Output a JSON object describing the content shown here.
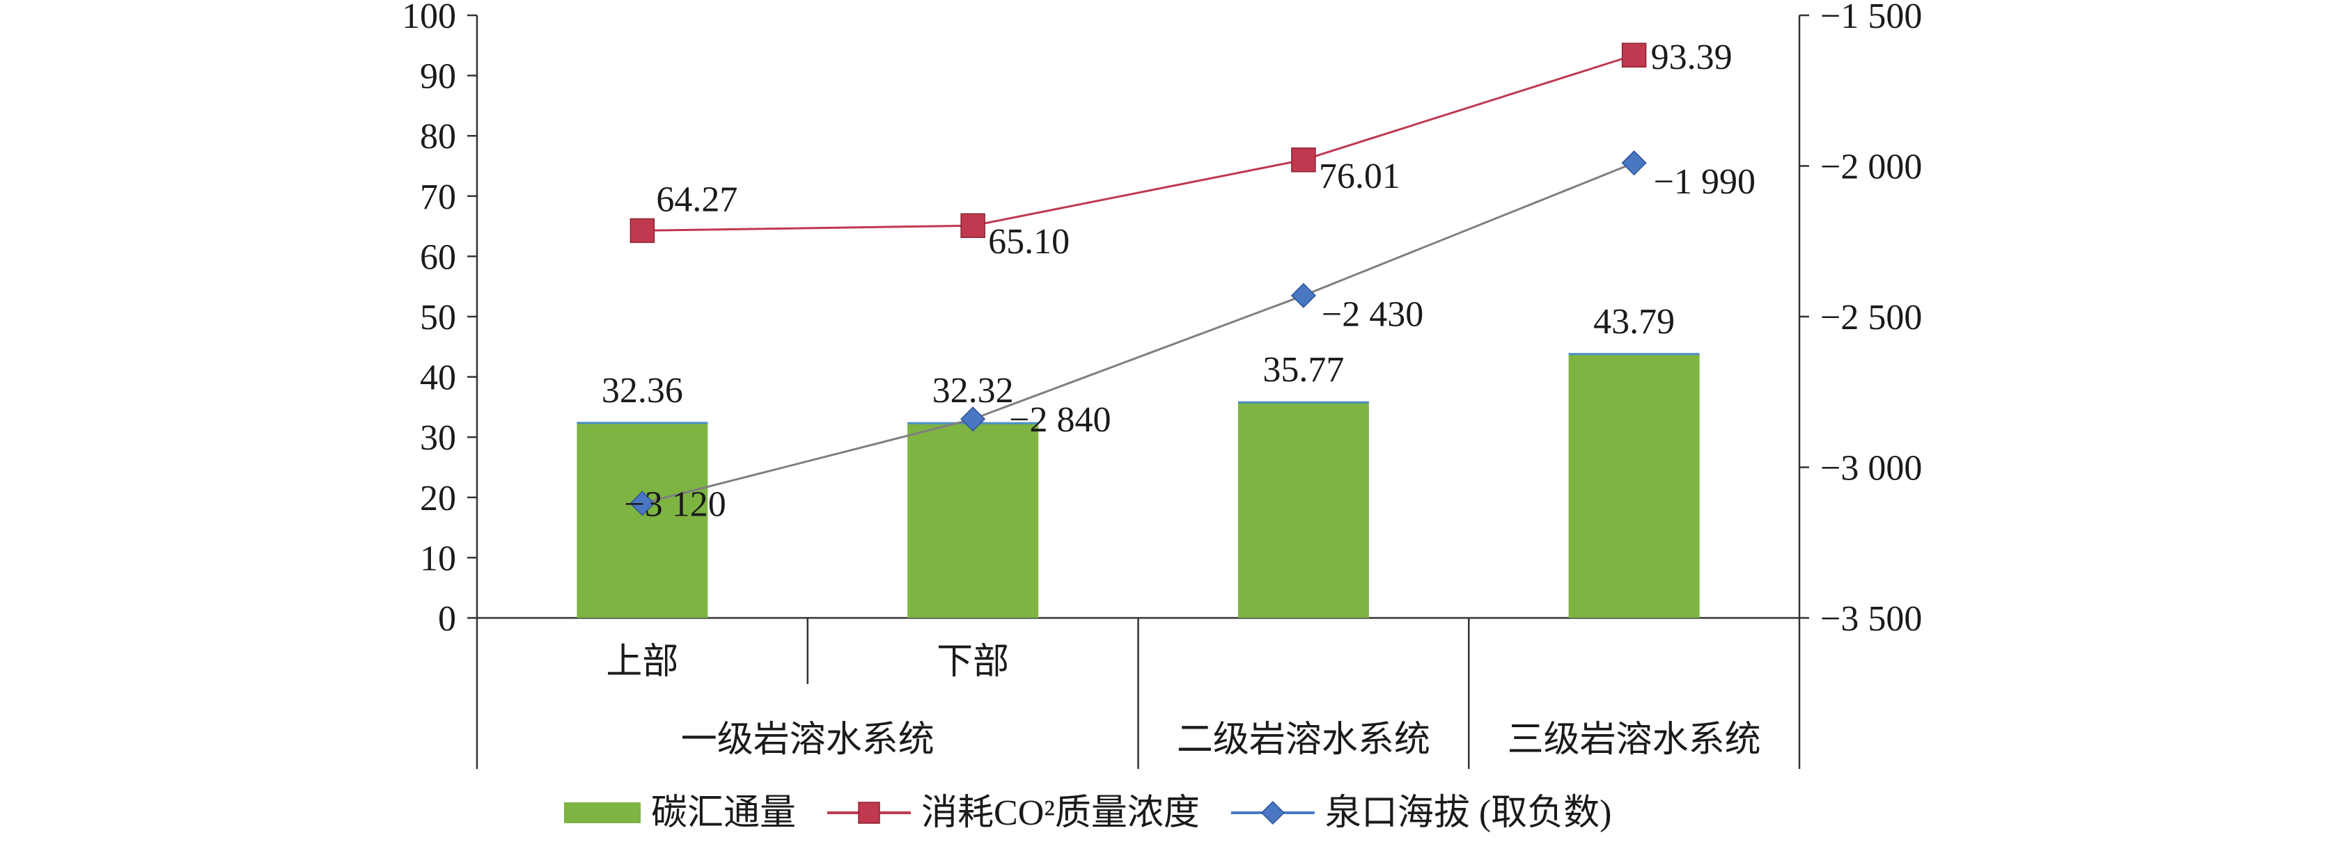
{
  "chart_data": {
    "type": "bar",
    "categories": [
      "上部",
      "下部",
      "二级岩溶水系统",
      "三级岩溶水系统"
    ],
    "category_groups": [
      {
        "label": "一级岩溶水系统",
        "members": [
          "上部",
          "下部"
        ]
      },
      {
        "label": "二级岩溶水系统",
        "members": [
          "二级岩溶水系统"
        ]
      },
      {
        "label": "三级岩溶水系统",
        "members": [
          "三级岩溶水系统"
        ]
      }
    ],
    "series": [
      {
        "name": "碳汇通量",
        "type": "bar",
        "axis": "left",
        "values": [
          32.36,
          32.32,
          35.77,
          43.79
        ],
        "labels": [
          "32.36",
          "32.32",
          "35.77",
          "43.79"
        ],
        "color": "#7db442"
      },
      {
        "name": "消耗CO²质量浓度",
        "type": "line",
        "axis": "left",
        "values": [
          64.27,
          65.1,
          76.01,
          93.39
        ],
        "labels": [
          "64.27",
          "65.10",
          "76.01",
          "93.39"
        ],
        "color": "#c0394f",
        "marker": "square"
      },
      {
        "name": "泉口海拔 (取负数)",
        "type": "line",
        "axis": "right",
        "values": [
          -3120,
          -2840,
          -2430,
          -1990
        ],
        "labels": [
          "−3 120",
          "−2 840",
          "−2 430",
          "−1 990"
        ],
        "color": "#4a77c4",
        "line_color": "#7f7f7f",
        "marker": "diamond"
      }
    ],
    "y_left": {
      "ylim": [
        0,
        100
      ],
      "ticks": [
        0,
        10,
        20,
        30,
        40,
        50,
        60,
        70,
        80,
        90,
        100
      ],
      "tick_labels": [
        "0",
        "10",
        "20",
        "30",
        "40",
        "50",
        "60",
        "70",
        "80",
        "90",
        "100"
      ]
    },
    "y_right": {
      "ylim": [
        -3500,
        -1500
      ],
      "ticks": [
        -3500,
        -3000,
        -2500,
        -2000,
        -1500
      ],
      "tick_labels": [
        "−3 500",
        "−3 000",
        "−2 500",
        "−2 000",
        "−1 500"
      ]
    },
    "legend_position": "bottom",
    "grid": false
  }
}
